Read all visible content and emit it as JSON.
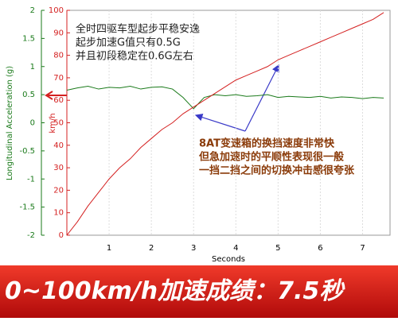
{
  "chart_data": {
    "type": "line",
    "x_label": "Seconds",
    "y_label": "Longitudinal Acceleration (g)",
    "y2_label": "km/h",
    "x": [
      0,
      0.25,
      0.5,
      0.75,
      1,
      1.25,
      1.5,
      1.75,
      2,
      2.25,
      2.5,
      2.75,
      3,
      3.25,
      3.5,
      3.75,
      4,
      4.25,
      4.5,
      4.75,
      5,
      5.25,
      5.5,
      5.75,
      6,
      6.25,
      6.5,
      6.75,
      7,
      7.25,
      7.5
    ],
    "series": [
      {
        "name": "Longitudinal Acceleration (g)",
        "color": "#1a7a1a",
        "values": [
          0.58,
          0.62,
          0.65,
          0.6,
          0.63,
          0.62,
          0.65,
          0.6,
          0.63,
          0.64,
          0.6,
          0.45,
          0.25,
          0.45,
          0.5,
          0.48,
          0.5,
          0.47,
          0.48,
          0.5,
          0.45,
          0.47,
          0.46,
          0.45,
          0.47,
          0.44,
          0.46,
          0.45,
          0.43,
          0.45,
          0.44
        ]
      },
      {
        "name": "km/h",
        "color": "#d42020",
        "axis": "y2",
        "values": [
          0,
          6,
          13,
          19,
          25,
          30,
          34,
          39,
          43,
          47,
          50,
          54,
          57,
          60,
          63,
          66,
          69,
          71,
          73,
          75,
          78,
          80,
          82,
          84,
          86,
          88,
          90,
          92,
          94,
          96,
          99
        ]
      }
    ],
    "xlim": [
      0,
      7.65
    ],
    "xticks": [
      1,
      2,
      3,
      4,
      5,
      6,
      7
    ],
    "ylim": [
      -2,
      2
    ],
    "yticks": [
      2,
      1.5,
      1,
      0.5,
      0,
      -0.5,
      -1,
      -1.5,
      -2
    ],
    "y2lim": [
      0,
      100
    ],
    "y2ticks": [
      100,
      90,
      80,
      70,
      60,
      50,
      40,
      30,
      20,
      10,
      0
    ],
    "grid": true,
    "annotations": [
      [
        "全时四驱车型起步平稳安逸",
        "起步加速G值只有0.5G",
        "并且初段稳定在0.6G左右"
      ],
      [
        "8AT变速箱的换挡速度非常快",
        "但急加速时的平顺性表现很一般",
        "一挡二挡之间的切换冲击感很夸张"
      ]
    ]
  },
  "banner": "0~100km/h加速成绩：7.5秒"
}
